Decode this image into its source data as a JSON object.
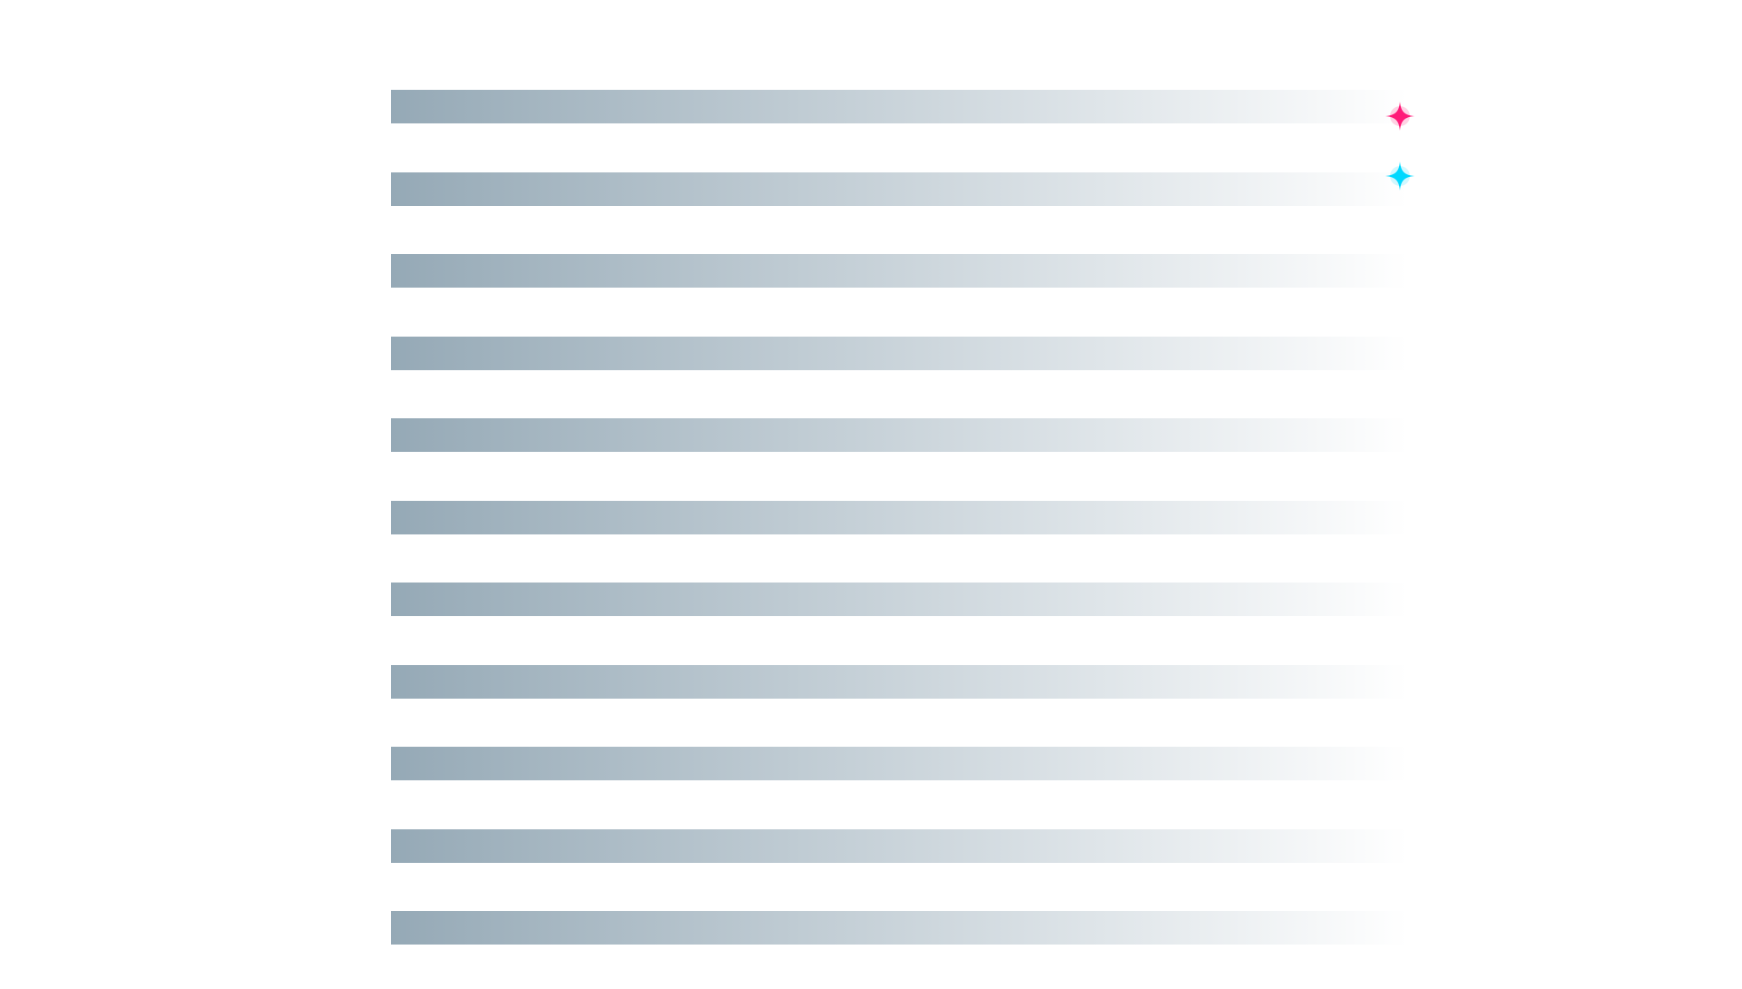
{
  "bars": {
    "count": 11,
    "gradient_start": "#95a9b6",
    "gradient_end": "#ffffff"
  },
  "sparkles": [
    {
      "name": "pink-sparkle-icon",
      "color": "#ff1a78",
      "glow": "#ff7fb2"
    },
    {
      "name": "cyan-sparkle-icon",
      "color": "#00d8ff",
      "glow": "#7fecff"
    }
  ]
}
